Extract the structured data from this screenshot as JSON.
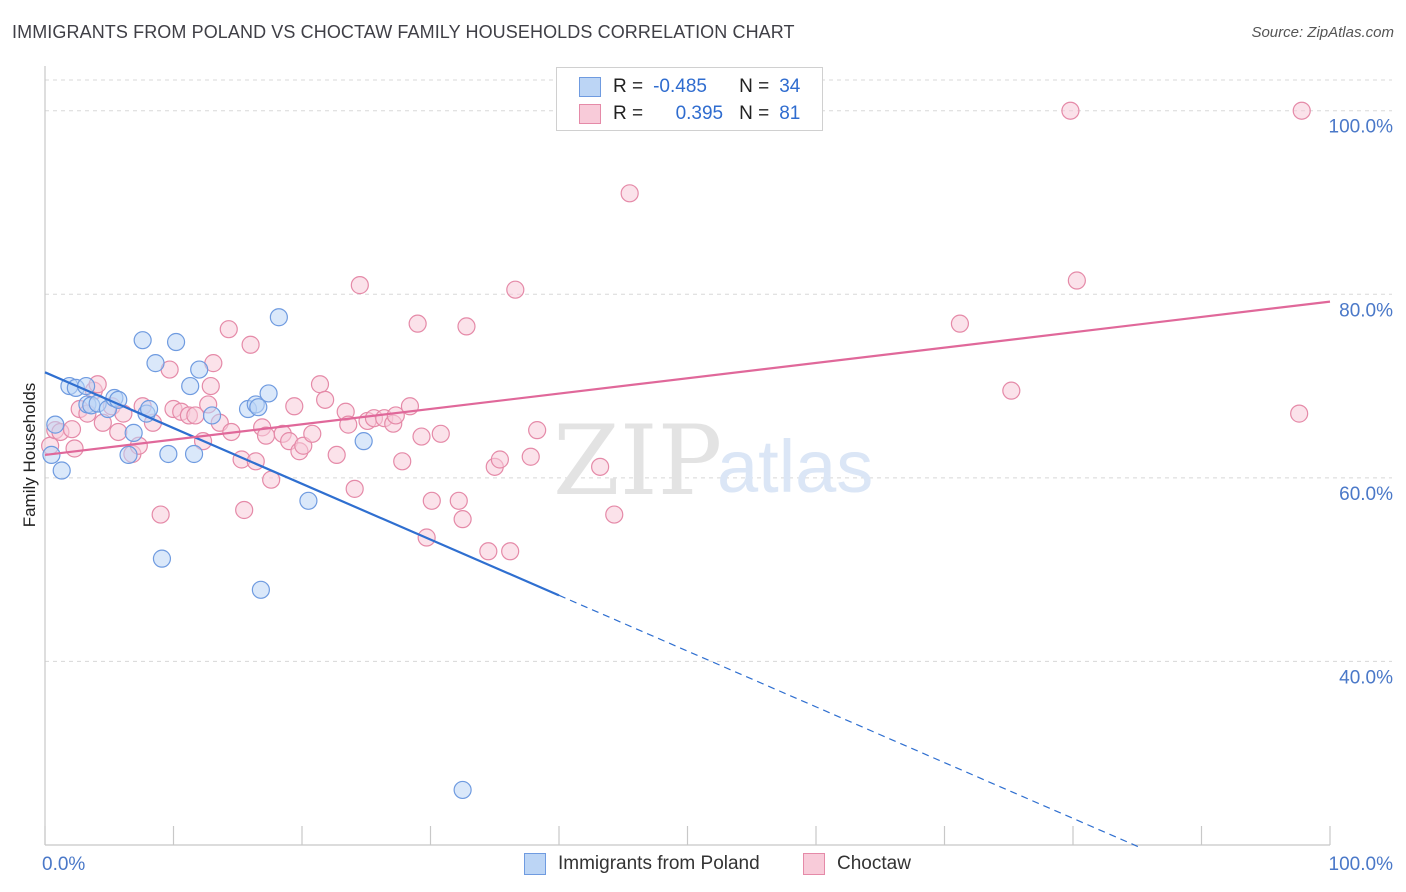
{
  "title": "IMMIGRANTS FROM POLAND VS CHOCTAW FAMILY HOUSEHOLDS CORRELATION CHART",
  "source": "Source: ZipAtlas.com",
  "legend_top": [
    {
      "r_label": "R =",
      "r_value": "-0.485",
      "n_label": "N =",
      "n_value": "34"
    },
    {
      "r_label": "R =",
      "r_value": "0.395",
      "n_label": "N =",
      "n_value": "81"
    }
  ],
  "watermark": {
    "zip": "ZIP",
    "atlas": "atlas"
  },
  "chart_data": {
    "type": "scatter",
    "title": "IMMIGRANTS FROM POLAND VS CHOCTAW FAMILY HOUSEHOLDS CORRELATION CHART",
    "xlabel": "",
    "ylabel": "Family Households",
    "xlim": [
      0,
      100
    ],
    "ylim": [
      20,
      104
    ],
    "x_tick_labels": [
      "0.0%",
      "100.0%"
    ],
    "y_ticks": [
      40,
      60,
      80,
      100
    ],
    "y_tick_labels": [
      "40.0%",
      "60.0%",
      "80.0%",
      "100.0%"
    ],
    "grid": true,
    "colors": {
      "blue_fill": "#bcd5f5",
      "blue_stroke": "#6f9be0",
      "blue_line": "#2f6fd0",
      "pink_fill": "#f8cbd9",
      "pink_stroke": "#e58aa8",
      "pink_line": "#e0689a",
      "tick_text": "#4a78c8",
      "grid": "#d8d8d8"
    },
    "series": [
      {
        "name": "Immigrants from Poland",
        "color": "#bcd5f5",
        "r": -0.485,
        "n": 34,
        "trend": {
          "x0": 0,
          "y0": 71.5,
          "x1": 40,
          "y1": 47.2,
          "x_dash_end": 85.3
        },
        "points": [
          [
            0.5,
            62.5
          ],
          [
            0.8,
            65.8
          ],
          [
            1.3,
            60.8
          ],
          [
            1.9,
            70.0
          ],
          [
            2.4,
            69.8
          ],
          [
            3.2,
            70.0
          ],
          [
            3.3,
            68.0
          ],
          [
            3.6,
            67.9
          ],
          [
            4.1,
            68.1
          ],
          [
            4.9,
            67.5
          ],
          [
            5.4,
            68.7
          ],
          [
            5.7,
            68.5
          ],
          [
            6.5,
            62.5
          ],
          [
            6.9,
            64.9
          ],
          [
            7.6,
            75.0
          ],
          [
            7.9,
            67.0
          ],
          [
            8.1,
            67.5
          ],
          [
            8.6,
            72.5
          ],
          [
            9.1,
            51.2
          ],
          [
            9.6,
            62.6
          ],
          [
            10.2,
            74.8
          ],
          [
            11.6,
            62.6
          ],
          [
            12.0,
            71.8
          ],
          [
            11.3,
            70.0
          ],
          [
            13.0,
            66.8
          ],
          [
            15.8,
            67.5
          ],
          [
            16.4,
            68.0
          ],
          [
            16.8,
            47.8
          ],
          [
            17.4,
            69.2
          ],
          [
            18.2,
            77.5
          ],
          [
            20.5,
            57.5
          ],
          [
            24.8,
            64.0
          ],
          [
            32.5,
            26.0
          ],
          [
            16.6,
            67.7
          ]
        ]
      },
      {
        "name": "Choctaw",
        "color": "#f8cbd9",
        "r": 0.395,
        "n": 81,
        "trend": {
          "x0": 0,
          "y0": 62.5,
          "x1": 100,
          "y1": 79.2
        },
        "points": [
          [
            0.4,
            63.5
          ],
          [
            0.8,
            65.2
          ],
          [
            1.2,
            65.0
          ],
          [
            2.1,
            65.3
          ],
          [
            2.3,
            63.2
          ],
          [
            2.7,
            67.5
          ],
          [
            3.3,
            67.0
          ],
          [
            3.8,
            69.5
          ],
          [
            4.1,
            70.2
          ],
          [
            4.5,
            66.0
          ],
          [
            5.2,
            67.8
          ],
          [
            5.7,
            65.0
          ],
          [
            6.1,
            67.0
          ],
          [
            6.8,
            62.6
          ],
          [
            7.3,
            63.5
          ],
          [
            7.6,
            67.8
          ],
          [
            8.4,
            66.0
          ],
          [
            9.0,
            56.0
          ],
          [
            9.7,
            71.8
          ],
          [
            10.0,
            67.5
          ],
          [
            10.6,
            67.2
          ],
          [
            11.2,
            66.8
          ],
          [
            11.7,
            66.8
          ],
          [
            12.3,
            64.0
          ],
          [
            12.7,
            68.0
          ],
          [
            12.9,
            70.0
          ],
          [
            13.1,
            72.5
          ],
          [
            13.6,
            66.0
          ],
          [
            14.3,
            76.2
          ],
          [
            14.5,
            65.0
          ],
          [
            15.3,
            62.0
          ],
          [
            15.5,
            56.5
          ],
          [
            16.0,
            74.5
          ],
          [
            16.4,
            61.8
          ],
          [
            16.9,
            65.5
          ],
          [
            17.2,
            64.6
          ],
          [
            17.6,
            59.8
          ],
          [
            18.5,
            64.8
          ],
          [
            19.0,
            64.0
          ],
          [
            19.4,
            67.8
          ],
          [
            19.8,
            62.9
          ],
          [
            20.1,
            63.5
          ],
          [
            20.8,
            64.8
          ],
          [
            21.4,
            70.2
          ],
          [
            21.8,
            68.5
          ],
          [
            22.7,
            62.5
          ],
          [
            23.4,
            67.2
          ],
          [
            23.6,
            65.8
          ],
          [
            24.1,
            58.8
          ],
          [
            24.5,
            81.0
          ],
          [
            25.1,
            66.2
          ],
          [
            25.6,
            66.5
          ],
          [
            26.4,
            66.5
          ],
          [
            27.1,
            65.9
          ],
          [
            27.3,
            66.8
          ],
          [
            27.8,
            61.8
          ],
          [
            28.4,
            67.8
          ],
          [
            29.0,
            76.8
          ],
          [
            29.3,
            64.5
          ],
          [
            29.7,
            53.5
          ],
          [
            30.1,
            57.5
          ],
          [
            30.8,
            64.8
          ],
          [
            32.2,
            57.5
          ],
          [
            32.5,
            55.5
          ],
          [
            32.8,
            76.5
          ],
          [
            34.5,
            52.0
          ],
          [
            35.0,
            61.2
          ],
          [
            35.4,
            62.0
          ],
          [
            36.2,
            52.0
          ],
          [
            36.6,
            80.5
          ],
          [
            37.8,
            62.3
          ],
          [
            38.3,
            65.2
          ],
          [
            43.2,
            61.2
          ],
          [
            44.3,
            56.0
          ],
          [
            45.5,
            91.0
          ],
          [
            79.8,
            100.0
          ],
          [
            80.3,
            81.5
          ],
          [
            97.8,
            100.0
          ],
          [
            71.2,
            76.8
          ],
          [
            75.2,
            69.5
          ],
          [
            97.6,
            67.0
          ]
        ]
      }
    ]
  },
  "bottom_legend": [
    "Immigrants from Poland",
    "Choctaw"
  ]
}
